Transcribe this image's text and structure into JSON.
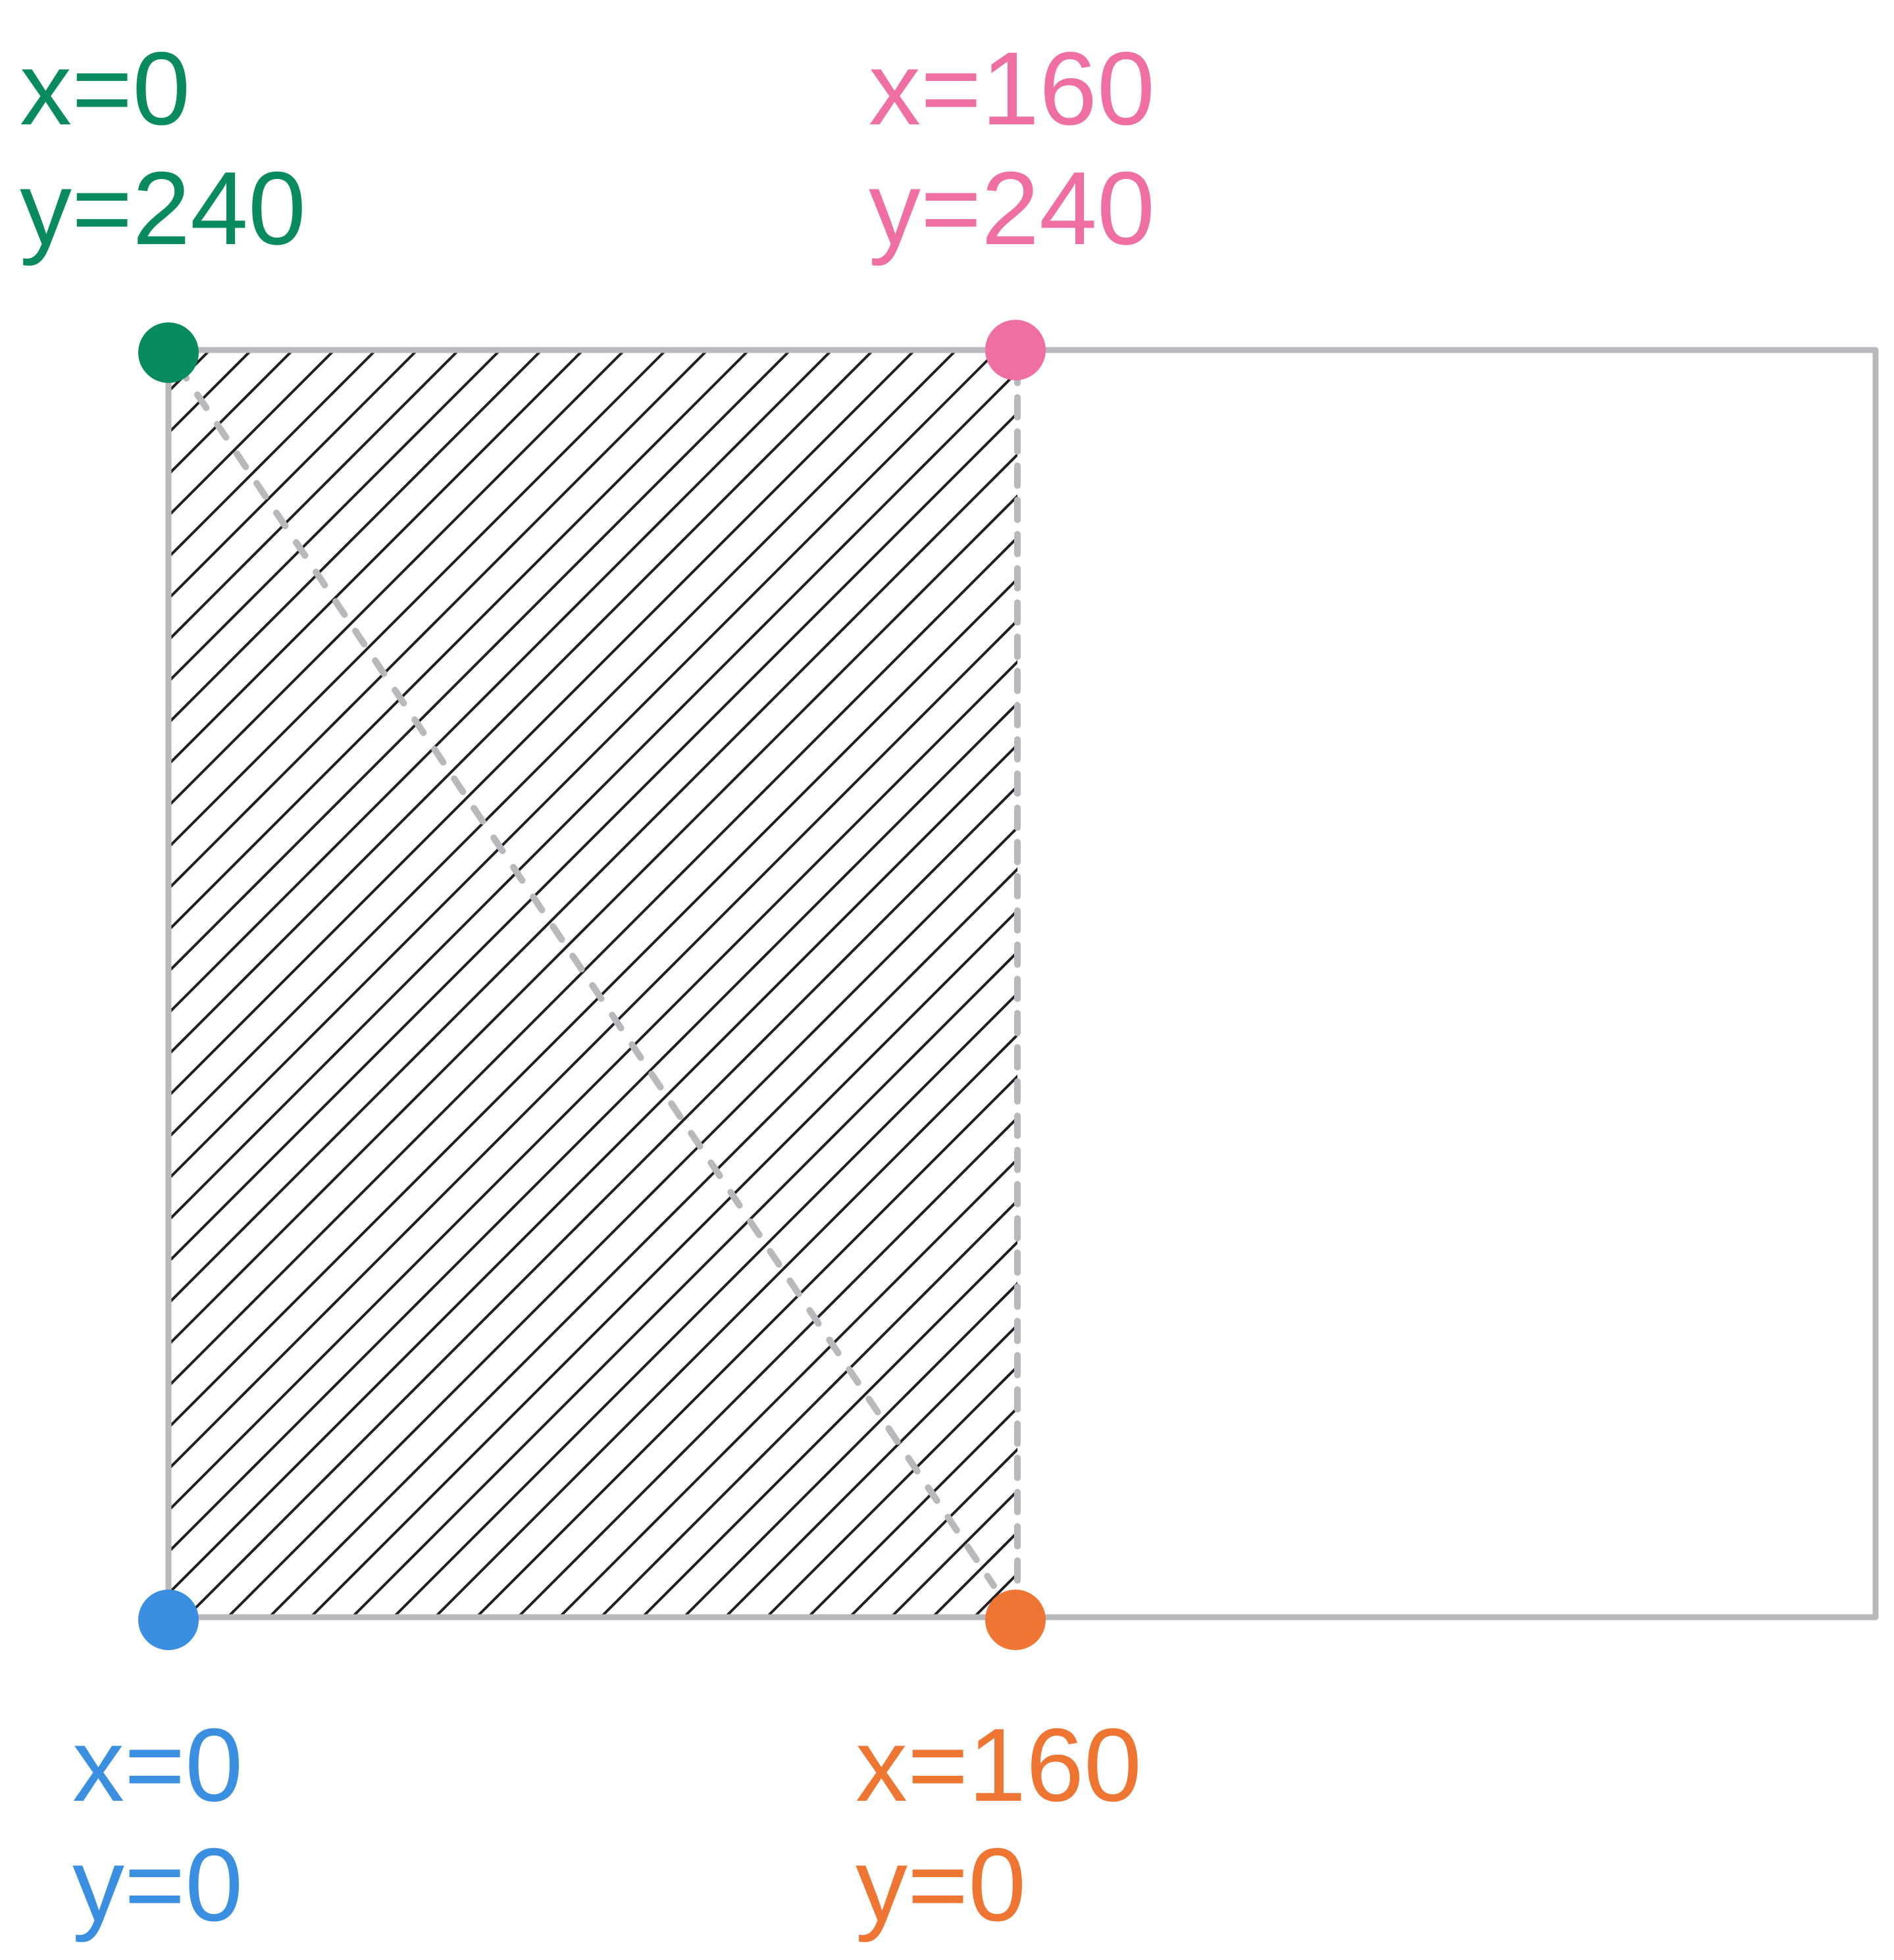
{
  "colors": {
    "top_left": "#0a8a5f",
    "top_right": "#f06fa3",
    "bottom_left": "#3a8fe0",
    "bottom_right": "#ef7533",
    "frame": "#b7b9bc",
    "hatch": "#231f20"
  },
  "corners": {
    "top_left": {
      "x_text": "x=0",
      "y_text": "y=240"
    },
    "top_right": {
      "x_text": "x=160",
      "y_text": "y=240"
    },
    "bottom_left": {
      "x_text": "x=0",
      "y_text": "y=0"
    },
    "bottom_right": {
      "x_text": "x=160",
      "y_text": "y=0"
    }
  }
}
